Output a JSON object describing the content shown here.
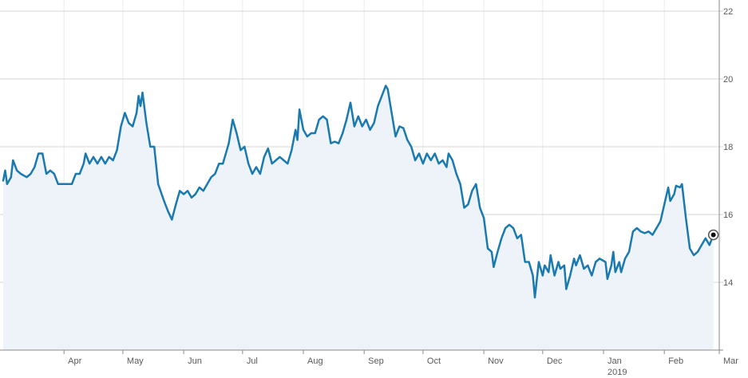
{
  "chart_data": {
    "type": "area",
    "title": "",
    "xlabel": "",
    "ylabel": "",
    "ylim": [
      12,
      22
    ],
    "y_ticks": [
      14,
      16,
      18,
      20,
      22
    ],
    "y_axis_side": "right",
    "grid": true,
    "colors": {
      "line": "#1a7ab0",
      "fill": "#edf3f9",
      "grid": "#d4d4d4",
      "axis": "#8a8a8a"
    },
    "x_start": "2018-03-01",
    "x_end": "2019-03-01",
    "month_ticks": [
      {
        "date": "2018-04-01",
        "label": "Apr"
      },
      {
        "date": "2018-05-01",
        "label": "May"
      },
      {
        "date": "2018-06-01",
        "label": "Jun"
      },
      {
        "date": "2018-07-01",
        "label": "Jul"
      },
      {
        "date": "2018-08-01",
        "label": "Aug"
      },
      {
        "date": "2018-09-01",
        "label": "Sep"
      },
      {
        "date": "2018-10-01",
        "label": "Oct"
      },
      {
        "date": "2018-11-01",
        "label": "Nov"
      },
      {
        "date": "2018-12-01",
        "label": "Dec"
      },
      {
        "date": "2019-01-01",
        "label": "Jan"
      },
      {
        "date": "2019-02-01",
        "label": "Feb"
      },
      {
        "date": "2019-03-01",
        "label": "Mar"
      }
    ],
    "year_label": {
      "date": "2019-01-01",
      "label": "2019"
    },
    "series": [
      {
        "points": [
          [
            "2018-03-01",
            17.0
          ],
          [
            "2018-03-02",
            17.3
          ],
          [
            "2018-03-03",
            16.9
          ],
          [
            "2018-03-05",
            17.1
          ],
          [
            "2018-03-06",
            17.6
          ],
          [
            "2018-03-08",
            17.3
          ],
          [
            "2018-03-10",
            17.2
          ],
          [
            "2018-03-13",
            17.1
          ],
          [
            "2018-03-15",
            17.2
          ],
          [
            "2018-03-17",
            17.4
          ],
          [
            "2018-03-19",
            17.8
          ],
          [
            "2018-03-21",
            17.8
          ],
          [
            "2018-03-23",
            17.2
          ],
          [
            "2018-03-25",
            17.3
          ],
          [
            "2018-03-27",
            17.2
          ],
          [
            "2018-03-29",
            16.9
          ],
          [
            "2018-04-02",
            16.9
          ],
          [
            "2018-04-05",
            16.9
          ],
          [
            "2018-04-07",
            17.2
          ],
          [
            "2018-04-09",
            17.2
          ],
          [
            "2018-04-11",
            17.5
          ],
          [
            "2018-04-12",
            17.8
          ],
          [
            "2018-04-14",
            17.5
          ],
          [
            "2018-04-16",
            17.7
          ],
          [
            "2018-04-18",
            17.5
          ],
          [
            "2018-04-20",
            17.7
          ],
          [
            "2018-04-22",
            17.5
          ],
          [
            "2018-04-24",
            17.7
          ],
          [
            "2018-04-26",
            17.6
          ],
          [
            "2018-04-28",
            17.9
          ],
          [
            "2018-04-30",
            18.6
          ],
          [
            "2018-05-02",
            19.0
          ],
          [
            "2018-05-04",
            18.7
          ],
          [
            "2018-05-06",
            18.6
          ],
          [
            "2018-05-08",
            19.0
          ],
          [
            "2018-05-09",
            19.5
          ],
          [
            "2018-05-10",
            19.2
          ],
          [
            "2018-05-11",
            19.6
          ],
          [
            "2018-05-13",
            18.7
          ],
          [
            "2018-05-15",
            18.0
          ],
          [
            "2018-05-17",
            18.0
          ],
          [
            "2018-05-19",
            16.9
          ],
          [
            "2018-05-22",
            16.4
          ],
          [
            "2018-05-24",
            16.1
          ],
          [
            "2018-05-26",
            15.85
          ],
          [
            "2018-05-28",
            16.3
          ],
          [
            "2018-05-30",
            16.7
          ],
          [
            "2018-06-01",
            16.6
          ],
          [
            "2018-06-03",
            16.7
          ],
          [
            "2018-06-05",
            16.5
          ],
          [
            "2018-06-07",
            16.6
          ],
          [
            "2018-06-09",
            16.8
          ],
          [
            "2018-06-11",
            16.7
          ],
          [
            "2018-06-13",
            16.9
          ],
          [
            "2018-06-15",
            17.1
          ],
          [
            "2018-06-17",
            17.2
          ],
          [
            "2018-06-19",
            17.5
          ],
          [
            "2018-06-21",
            17.5
          ],
          [
            "2018-06-24",
            18.1
          ],
          [
            "2018-06-26",
            18.8
          ],
          [
            "2018-06-28",
            18.4
          ],
          [
            "2018-06-30",
            17.9
          ],
          [
            "2018-07-02",
            18.0
          ],
          [
            "2018-07-04",
            17.5
          ],
          [
            "2018-07-06",
            17.2
          ],
          [
            "2018-07-08",
            17.4
          ],
          [
            "2018-07-10",
            17.2
          ],
          [
            "2018-07-12",
            17.7
          ],
          [
            "2018-07-14",
            17.95
          ],
          [
            "2018-07-16",
            17.5
          ],
          [
            "2018-07-18",
            17.6
          ],
          [
            "2018-07-20",
            17.7
          ],
          [
            "2018-07-22",
            17.6
          ],
          [
            "2018-07-24",
            17.5
          ],
          [
            "2018-07-26",
            17.9
          ],
          [
            "2018-07-28",
            18.5
          ],
          [
            "2018-07-29",
            18.2
          ],
          [
            "2018-07-30",
            19.1
          ],
          [
            "2018-08-01",
            18.5
          ],
          [
            "2018-08-03",
            18.3
          ],
          [
            "2018-08-05",
            18.4
          ],
          [
            "2018-08-07",
            18.4
          ],
          [
            "2018-08-09",
            18.8
          ],
          [
            "2018-08-11",
            18.9
          ],
          [
            "2018-08-13",
            18.8
          ],
          [
            "2018-08-15",
            18.1
          ],
          [
            "2018-08-17",
            18.15
          ],
          [
            "2018-08-19",
            18.1
          ],
          [
            "2018-08-21",
            18.4
          ],
          [
            "2018-08-23",
            18.8
          ],
          [
            "2018-08-25",
            19.3
          ],
          [
            "2018-08-27",
            18.6
          ],
          [
            "2018-08-29",
            18.9
          ],
          [
            "2018-08-31",
            18.6
          ],
          [
            "2018-09-02",
            18.8
          ],
          [
            "2018-09-04",
            18.5
          ],
          [
            "2018-09-06",
            18.7
          ],
          [
            "2018-09-08",
            19.2
          ],
          [
            "2018-09-10",
            19.5
          ],
          [
            "2018-09-12",
            19.8
          ],
          [
            "2018-09-13",
            19.7
          ],
          [
            "2018-09-15",
            19.0
          ],
          [
            "2018-09-17",
            18.3
          ],
          [
            "2018-09-19",
            18.6
          ],
          [
            "2018-09-21",
            18.55
          ],
          [
            "2018-09-23",
            18.2
          ],
          [
            "2018-09-25",
            18.0
          ],
          [
            "2018-09-27",
            17.6
          ],
          [
            "2018-09-29",
            17.8
          ],
          [
            "2018-10-01",
            17.5
          ],
          [
            "2018-10-03",
            17.8
          ],
          [
            "2018-10-05",
            17.6
          ],
          [
            "2018-10-07",
            17.8
          ],
          [
            "2018-10-09",
            17.5
          ],
          [
            "2018-10-11",
            17.6
          ],
          [
            "2018-10-13",
            17.4
          ],
          [
            "2018-10-14",
            17.8
          ],
          [
            "2018-10-16",
            17.6
          ],
          [
            "2018-10-18",
            17.2
          ],
          [
            "2018-10-20",
            16.9
          ],
          [
            "2018-10-22",
            16.2
          ],
          [
            "2018-10-24",
            16.3
          ],
          [
            "2018-10-26",
            16.7
          ],
          [
            "2018-10-28",
            16.9
          ],
          [
            "2018-10-30",
            16.2
          ],
          [
            "2018-11-01",
            15.9
          ],
          [
            "2018-11-03",
            15.0
          ],
          [
            "2018-11-05",
            14.9
          ],
          [
            "2018-11-06",
            14.45
          ],
          [
            "2018-11-08",
            14.9
          ],
          [
            "2018-11-10",
            15.3
          ],
          [
            "2018-11-12",
            15.6
          ],
          [
            "2018-11-14",
            15.7
          ],
          [
            "2018-11-16",
            15.6
          ],
          [
            "2018-11-18",
            15.3
          ],
          [
            "2018-11-20",
            15.4
          ],
          [
            "2018-11-22",
            14.6
          ],
          [
            "2018-11-24",
            14.6
          ],
          [
            "2018-11-26",
            14.2
          ],
          [
            "2018-11-27",
            13.55
          ],
          [
            "2018-11-29",
            14.6
          ],
          [
            "2018-12-01",
            14.2
          ],
          [
            "2018-12-02",
            14.5
          ],
          [
            "2018-12-04",
            14.3
          ],
          [
            "2018-12-05",
            14.8
          ],
          [
            "2018-12-07",
            14.2
          ],
          [
            "2018-12-09",
            14.6
          ],
          [
            "2018-12-10",
            14.4
          ],
          [
            "2018-12-12",
            14.5
          ],
          [
            "2018-12-13",
            13.8
          ],
          [
            "2018-12-15",
            14.2
          ],
          [
            "2018-12-17",
            14.7
          ],
          [
            "2018-12-18",
            14.5
          ],
          [
            "2018-12-20",
            14.8
          ],
          [
            "2018-12-22",
            14.4
          ],
          [
            "2018-12-24",
            14.5
          ],
          [
            "2018-12-26",
            14.2
          ],
          [
            "2018-12-28",
            14.6
          ],
          [
            "2018-12-30",
            14.7
          ],
          [
            "2019-01-02",
            14.6
          ],
          [
            "2019-01-03",
            14.1
          ],
          [
            "2019-01-05",
            14.5
          ],
          [
            "2019-01-06",
            14.9
          ],
          [
            "2019-01-07",
            14.3
          ],
          [
            "2019-01-09",
            14.6
          ],
          [
            "2019-01-10",
            14.3
          ],
          [
            "2019-01-12",
            14.7
          ],
          [
            "2019-01-14",
            14.9
          ],
          [
            "2019-01-16",
            15.5
          ],
          [
            "2019-01-18",
            15.6
          ],
          [
            "2019-01-20",
            15.5
          ],
          [
            "2019-01-22",
            15.45
          ],
          [
            "2019-01-24",
            15.5
          ],
          [
            "2019-01-26",
            15.4
          ],
          [
            "2019-01-28",
            15.6
          ],
          [
            "2019-01-30",
            15.8
          ],
          [
            "2019-02-01",
            16.3
          ],
          [
            "2019-02-03",
            16.8
          ],
          [
            "2019-02-04",
            16.4
          ],
          [
            "2019-02-06",
            16.6
          ],
          [
            "2019-02-07",
            16.85
          ],
          [
            "2019-02-09",
            16.8
          ],
          [
            "2019-02-10",
            16.9
          ],
          [
            "2019-02-12",
            15.9
          ],
          [
            "2019-02-14",
            15.0
          ],
          [
            "2019-02-16",
            14.8
          ],
          [
            "2019-02-18",
            14.9
          ],
          [
            "2019-02-20",
            15.1
          ],
          [
            "2019-02-22",
            15.3
          ],
          [
            "2019-02-24",
            15.1
          ],
          [
            "2019-02-26",
            15.4
          ]
        ]
      }
    ],
    "last_point_marker": true
  }
}
